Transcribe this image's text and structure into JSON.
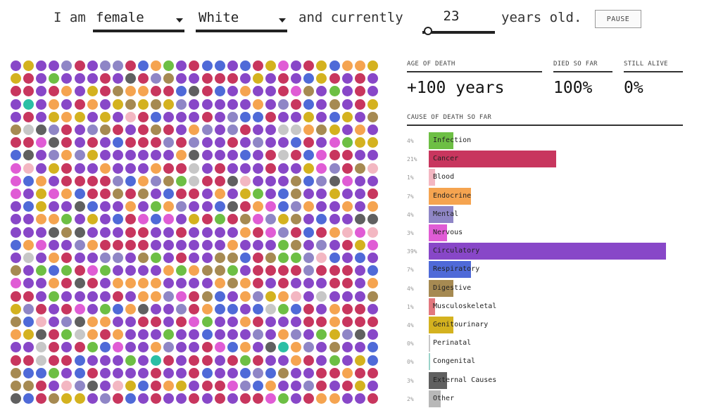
{
  "controls": {
    "prefix": "I am",
    "gender": "female",
    "race": "White",
    "middle": "and currently",
    "age": "23",
    "suffix": "years old.",
    "pause_label": "PAUSE"
  },
  "stats": {
    "age_header": "AGE OF DEATH",
    "age_value": "+100 years",
    "died_header": "DIED SO FAR",
    "died_value": "100%",
    "alive_header": "STILL ALIVE",
    "alive_value": "0%",
    "cause_header": "CAUSE OF DEATH SO FAR"
  },
  "chart_data": {
    "type": "bar",
    "orientation": "horizontal",
    "categories": [
      "Infection",
      "Cancer",
      "Blood",
      "Endocrine",
      "Mental",
      "Nervous",
      "Circulatory",
      "Respiratory",
      "Digestive",
      "Musculoskeletal",
      "Genitourinary",
      "Perinatal",
      "Congenital",
      "External Causes",
      "Other"
    ],
    "labels": [
      "4%",
      "21%",
      "1%",
      "7%",
      "4%",
      "3%",
      "39%",
      "7%",
      "4%",
      "1%",
      "4%",
      "0%",
      "0%",
      "3%",
      "2%"
    ],
    "values": [
      4,
      21,
      1,
      7,
      4,
      3,
      39,
      7,
      4,
      1,
      4,
      0,
      0,
      3,
      2
    ],
    "colors": [
      "#6dbf44",
      "#c8365e",
      "#f3b7c2",
      "#f5a450",
      "#8f86c6",
      "#e05cd5",
      "#8847c8",
      "#4f6ad8",
      "#a68a52",
      "#e2787e",
      "#d4b21f",
      "#c7c7c7",
      "#9ad3c9",
      "#606060",
      "#b8b8b8"
    ],
    "xlim": [
      0,
      39
    ]
  },
  "dots": {
    "cols": 29,
    "rows": 27,
    "palette": [
      "#8847c8",
      "#c8365e",
      "#f5a450",
      "#4f6ad8",
      "#8f86c6",
      "#e05cd5",
      "#6dbf44",
      "#a68a52",
      "#d4b21f",
      "#606060",
      "#f3b7c2",
      "#c7c7c7",
      "#2bbfa5"
    ],
    "weights": [
      36,
      21,
      8,
      7,
      5,
      4,
      4,
      4,
      4,
      3,
      2,
      1.5,
      0.5
    ]
  }
}
